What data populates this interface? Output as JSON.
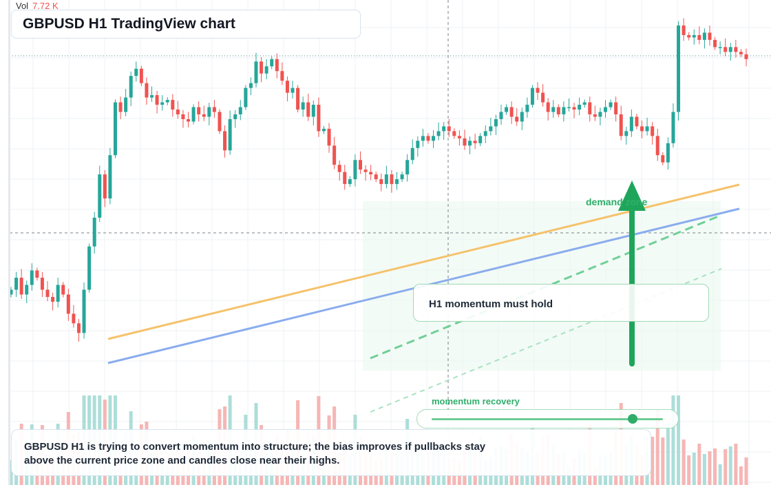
{
  "header": {
    "vol_label": "Vol",
    "vol_value": "7.72 K",
    "title": "GBPUSD H1 TradingView chart"
  },
  "annotations": {
    "zone_label": "demand zone",
    "callout": "H1 momentum must hold",
    "slider_label": "momentum recovery",
    "slider_value": 0.87,
    "note": "GBPUSD H1 is trying to convert momentum into structure; the bias improves if pullbacks stay above the current price zone and candles close near their highs."
  },
  "colors": {
    "up": "#26a69a",
    "down": "#ef5350",
    "accent": "#2fae6a",
    "trend_orange": "#f5c26b",
    "trend_blue": "#8aacee",
    "grid": "#eef1f4"
  },
  "chart_data": {
    "type": "candlestick",
    "title": "GBPUSD H1 TradingView chart",
    "ylim": [
      0,
      100
    ],
    "grid": true,
    "closes": [
      40,
      45,
      38,
      42,
      48,
      45,
      40,
      37,
      35,
      42,
      38,
      30,
      26,
      22,
      40,
      58,
      70,
      88,
      78,
      96,
      118,
      114,
      120,
      129,
      132,
      126,
      120,
      121,
      117,
      118,
      119,
      115,
      113,
      111,
      110,
      116,
      113,
      112,
      116,
      114,
      106,
      98,
      111,
      113,
      116,
      124,
      126,
      135,
      130,
      133,
      136,
      131,
      127,
      122,
      124,
      115,
      118,
      112,
      117,
      106,
      107,
      100,
      92,
      89,
      84,
      86,
      94,
      90,
      89,
      88,
      86,
      84,
      88,
      84,
      86,
      88,
      94,
      99,
      102,
      104,
      102,
      104,
      106,
      108,
      106,
      104,
      103,
      100,
      102,
      101,
      104,
      106,
      108,
      111,
      114,
      116,
      112,
      110,
      114,
      117,
      124,
      122,
      118,
      114,
      116,
      113,
      116,
      116,
      115,
      117,
      118,
      113,
      112,
      114,
      116,
      118,
      113,
      104,
      106,
      112,
      108,
      106,
      108,
      104,
      96,
      93,
      101,
      114,
      150,
      146,
      145,
      146,
      144,
      147,
      144,
      141,
      141,
      139,
      141,
      139,
      138,
      136
    ],
    "volume_note": "volume bars per candle (relative)",
    "trendlines": [
      {
        "from": [
          157,
          492
        ],
        "to": [
          1074,
          268
        ]
      },
      {
        "from": [
          157,
          527
        ],
        "to": [
          1074,
          303
        ]
      }
    ],
    "last_price_label": "",
    "xlabel": "",
    "ylabel": ""
  }
}
